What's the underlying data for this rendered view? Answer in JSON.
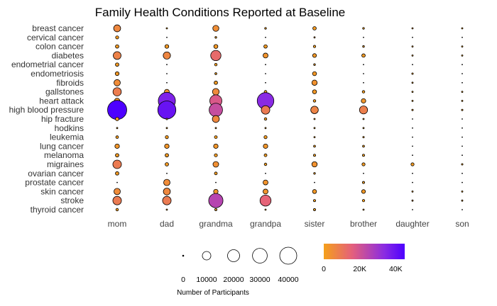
{
  "chart_data": {
    "type": "scatter",
    "title": "Family Health Conditions Reported at Baseline",
    "conditions": [
      "breast cancer",
      "cervical cancer",
      "colon cancer",
      "diabetes",
      "endometrial cancer",
      "endometriosis",
      "fibroids",
      "gallstones",
      "heart attack",
      "high blood pressure",
      "hip fracture",
      "hodkins",
      "leukemia",
      "lung cancer",
      "melanoma",
      "migraines",
      "ovarian cancer",
      "prostate cancer",
      "skin cancer",
      "stroke",
      "thyroid cancer"
    ],
    "members": [
      "mom",
      "dad",
      "grandma",
      "grandpa",
      "sister",
      "brother",
      "daughter",
      "son"
    ],
    "counts": [
      [
        6000,
        50,
        4500,
        400,
        1500,
        400,
        200,
        100
      ],
      [
        1200,
        0,
        400,
        0,
        200,
        0,
        0,
        0
      ],
      [
        1500,
        1800,
        2000,
        1500,
        700,
        400,
        50,
        50
      ],
      [
        7500,
        6500,
        13000,
        3000,
        1800,
        1500,
        100,
        100
      ],
      [
        1500,
        0,
        800,
        0,
        400,
        0,
        0,
        0
      ],
      [
        1800,
        0,
        500,
        0,
        2000,
        0,
        300,
        0
      ],
      [
        5000,
        0,
        1500,
        0,
        3500,
        0,
        200,
        0
      ],
      [
        8500,
        3000,
        5500,
        900,
        2000,
        800,
        50,
        50
      ],
      [
        3500,
        36000,
        18000,
        34000,
        800,
        2500,
        100,
        100
      ],
      [
        45000,
        40000,
        22000,
        9000,
        7000,
        8000,
        300,
        300
      ],
      [
        1500,
        300,
        6000,
        800,
        200,
        100,
        0,
        0
      ],
      [
        200,
        200,
        100,
        200,
        200,
        200,
        0,
        0
      ],
      [
        900,
        1200,
        1000,
        1200,
        200,
        300,
        0,
        0
      ],
      [
        2500,
        2500,
        2500,
        2500,
        500,
        500,
        0,
        0
      ],
      [
        1500,
        1500,
        1200,
        1000,
        600,
        600,
        0,
        0
      ],
      [
        9000,
        1500,
        4000,
        800,
        3500,
        1200,
        1200,
        300
      ],
      [
        1500,
        0,
        1000,
        0,
        400,
        0,
        0,
        0
      ],
      [
        0,
        5000,
        0,
        3000,
        0,
        600,
        0,
        0
      ],
      [
        5000,
        6000,
        2500,
        3000,
        2000,
        1800,
        100,
        100
      ],
      [
        9000,
        9000,
        25000,
        15000,
        600,
        700,
        100,
        100
      ],
      [
        800,
        200,
        600,
        200,
        600,
        200,
        0,
        0
      ]
    ],
    "size_legend": {
      "title": "Number of Participants",
      "values": [
        0,
        10000,
        20000,
        30000,
        40000
      ],
      "labels": [
        "0",
        "10000",
        "20000",
        "30000",
        "40000"
      ]
    },
    "color_legend": {
      "range": [
        0,
        45000
      ],
      "ticks": [
        0,
        20000,
        40000
      ],
      "labels": [
        "0",
        "20K",
        "40K"
      ],
      "colors": [
        "#f5a01a",
        "#e4607c",
        "#8a2be2",
        "#4d00ff"
      ]
    },
    "grid": false
  }
}
